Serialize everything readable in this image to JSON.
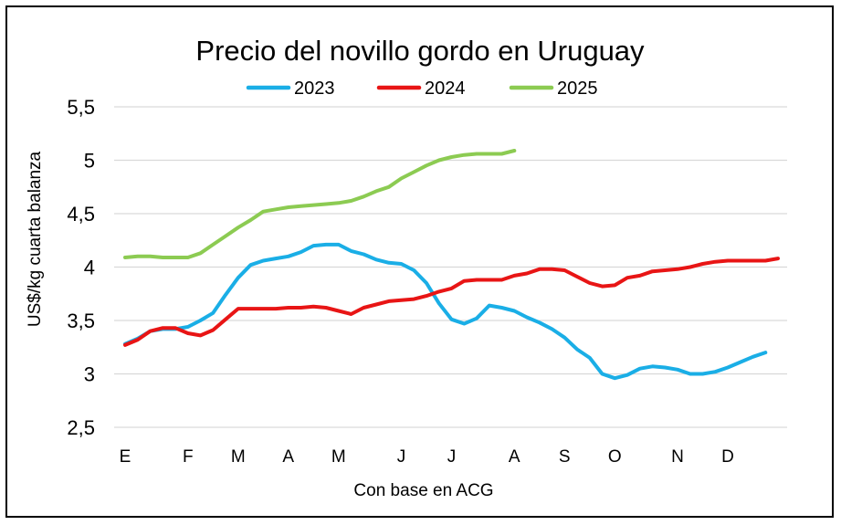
{
  "chart_data": {
    "type": "line",
    "title": "Precio del novillo gordo en Uruguay",
    "xlabel": "Con base en ACG",
    "ylabel": "US$/kg cuarta balanza",
    "ylim": [
      2.5,
      5.5
    ],
    "yticks": [
      "2,5",
      "3",
      "3,5",
      "4",
      "4,5",
      "5",
      "5,5"
    ],
    "ytick_values": [
      2.5,
      3,
      3.5,
      4,
      4.5,
      5,
      5.5
    ],
    "x_months": [
      "E",
      "F",
      "M",
      "A",
      "M",
      "J",
      "J",
      "A",
      "S",
      "O",
      "N",
      "D"
    ],
    "x_month_positions": [
      1,
      6,
      10,
      14,
      18,
      23,
      27,
      32,
      36,
      40,
      45,
      49
    ],
    "xlim": [
      1,
      53
    ],
    "grid": "horizontal",
    "legend_position": "top-center",
    "series": [
      {
        "name": "2023",
        "color": "#1aaee6",
        "x": [
          1,
          2,
          3,
          4,
          5,
          6,
          7,
          8,
          9,
          10,
          11,
          12,
          13,
          14,
          15,
          16,
          17,
          18,
          19,
          20,
          21,
          22,
          23,
          24,
          25,
          26,
          27,
          28,
          29,
          30,
          31,
          32,
          33,
          34,
          35,
          36,
          37,
          38,
          39,
          40,
          41,
          42,
          43,
          44,
          45,
          46,
          47,
          48,
          49,
          50,
          51,
          52
        ],
        "values": [
          3.28,
          3.33,
          3.4,
          3.42,
          3.42,
          3.44,
          3.5,
          3.57,
          3.74,
          3.9,
          4.02,
          4.06,
          4.08,
          4.1,
          4.14,
          4.2,
          4.21,
          4.21,
          4.15,
          4.12,
          4.07,
          4.04,
          4.03,
          3.97,
          3.85,
          3.66,
          3.51,
          3.47,
          3.52,
          3.64,
          3.62,
          3.59,
          3.53,
          3.48,
          3.42,
          3.34,
          3.23,
          3.15,
          3.0,
          2.96,
          2.99,
          3.05,
          3.07,
          3.06,
          3.04,
          3.0,
          3.0,
          3.02,
          3.06,
          3.11,
          3.16,
          3.2
        ]
      },
      {
        "name": "2024",
        "color": "#e81515",
        "x": [
          1,
          2,
          3,
          4,
          5,
          6,
          7,
          8,
          9,
          10,
          11,
          12,
          13,
          14,
          15,
          16,
          17,
          18,
          19,
          20,
          21,
          22,
          23,
          24,
          25,
          26,
          27,
          28,
          29,
          30,
          31,
          32,
          33,
          34,
          35,
          36,
          37,
          38,
          39,
          40,
          41,
          42,
          43,
          44,
          45,
          46,
          47,
          48,
          49,
          50,
          51,
          52,
          53
        ],
        "values": [
          3.27,
          3.32,
          3.4,
          3.43,
          3.43,
          3.38,
          3.36,
          3.41,
          3.51,
          3.61,
          3.61,
          3.61,
          3.61,
          3.62,
          3.62,
          3.63,
          3.62,
          3.59,
          3.56,
          3.62,
          3.65,
          3.68,
          3.69,
          3.7,
          3.73,
          3.77,
          3.8,
          3.87,
          3.88,
          3.88,
          3.88,
          3.92,
          3.94,
          3.98,
          3.98,
          3.97,
          3.91,
          3.85,
          3.82,
          3.83,
          3.9,
          3.92,
          3.96,
          3.97,
          3.98,
          4.0,
          4.03,
          4.05,
          4.06,
          4.06,
          4.06,
          4.06,
          4.08
        ]
      },
      {
        "name": "2025",
        "color": "#8ccb52",
        "x": [
          1,
          2,
          3,
          4,
          5,
          6,
          7,
          8,
          9,
          10,
          11,
          12,
          13,
          14,
          15,
          16,
          17,
          18,
          19,
          20,
          21,
          22,
          23,
          24,
          25,
          26,
          27,
          28,
          29,
          30,
          31,
          32
        ],
        "values": [
          4.09,
          4.1,
          4.1,
          4.09,
          4.09,
          4.09,
          4.13,
          4.21,
          4.29,
          4.37,
          4.44,
          4.52,
          4.54,
          4.56,
          4.57,
          4.58,
          4.59,
          4.6,
          4.62,
          4.66,
          4.71,
          4.75,
          4.83,
          4.89,
          4.95,
          5.0,
          5.03,
          5.05,
          5.06,
          5.06,
          5.06,
          5.09
        ]
      }
    ]
  }
}
